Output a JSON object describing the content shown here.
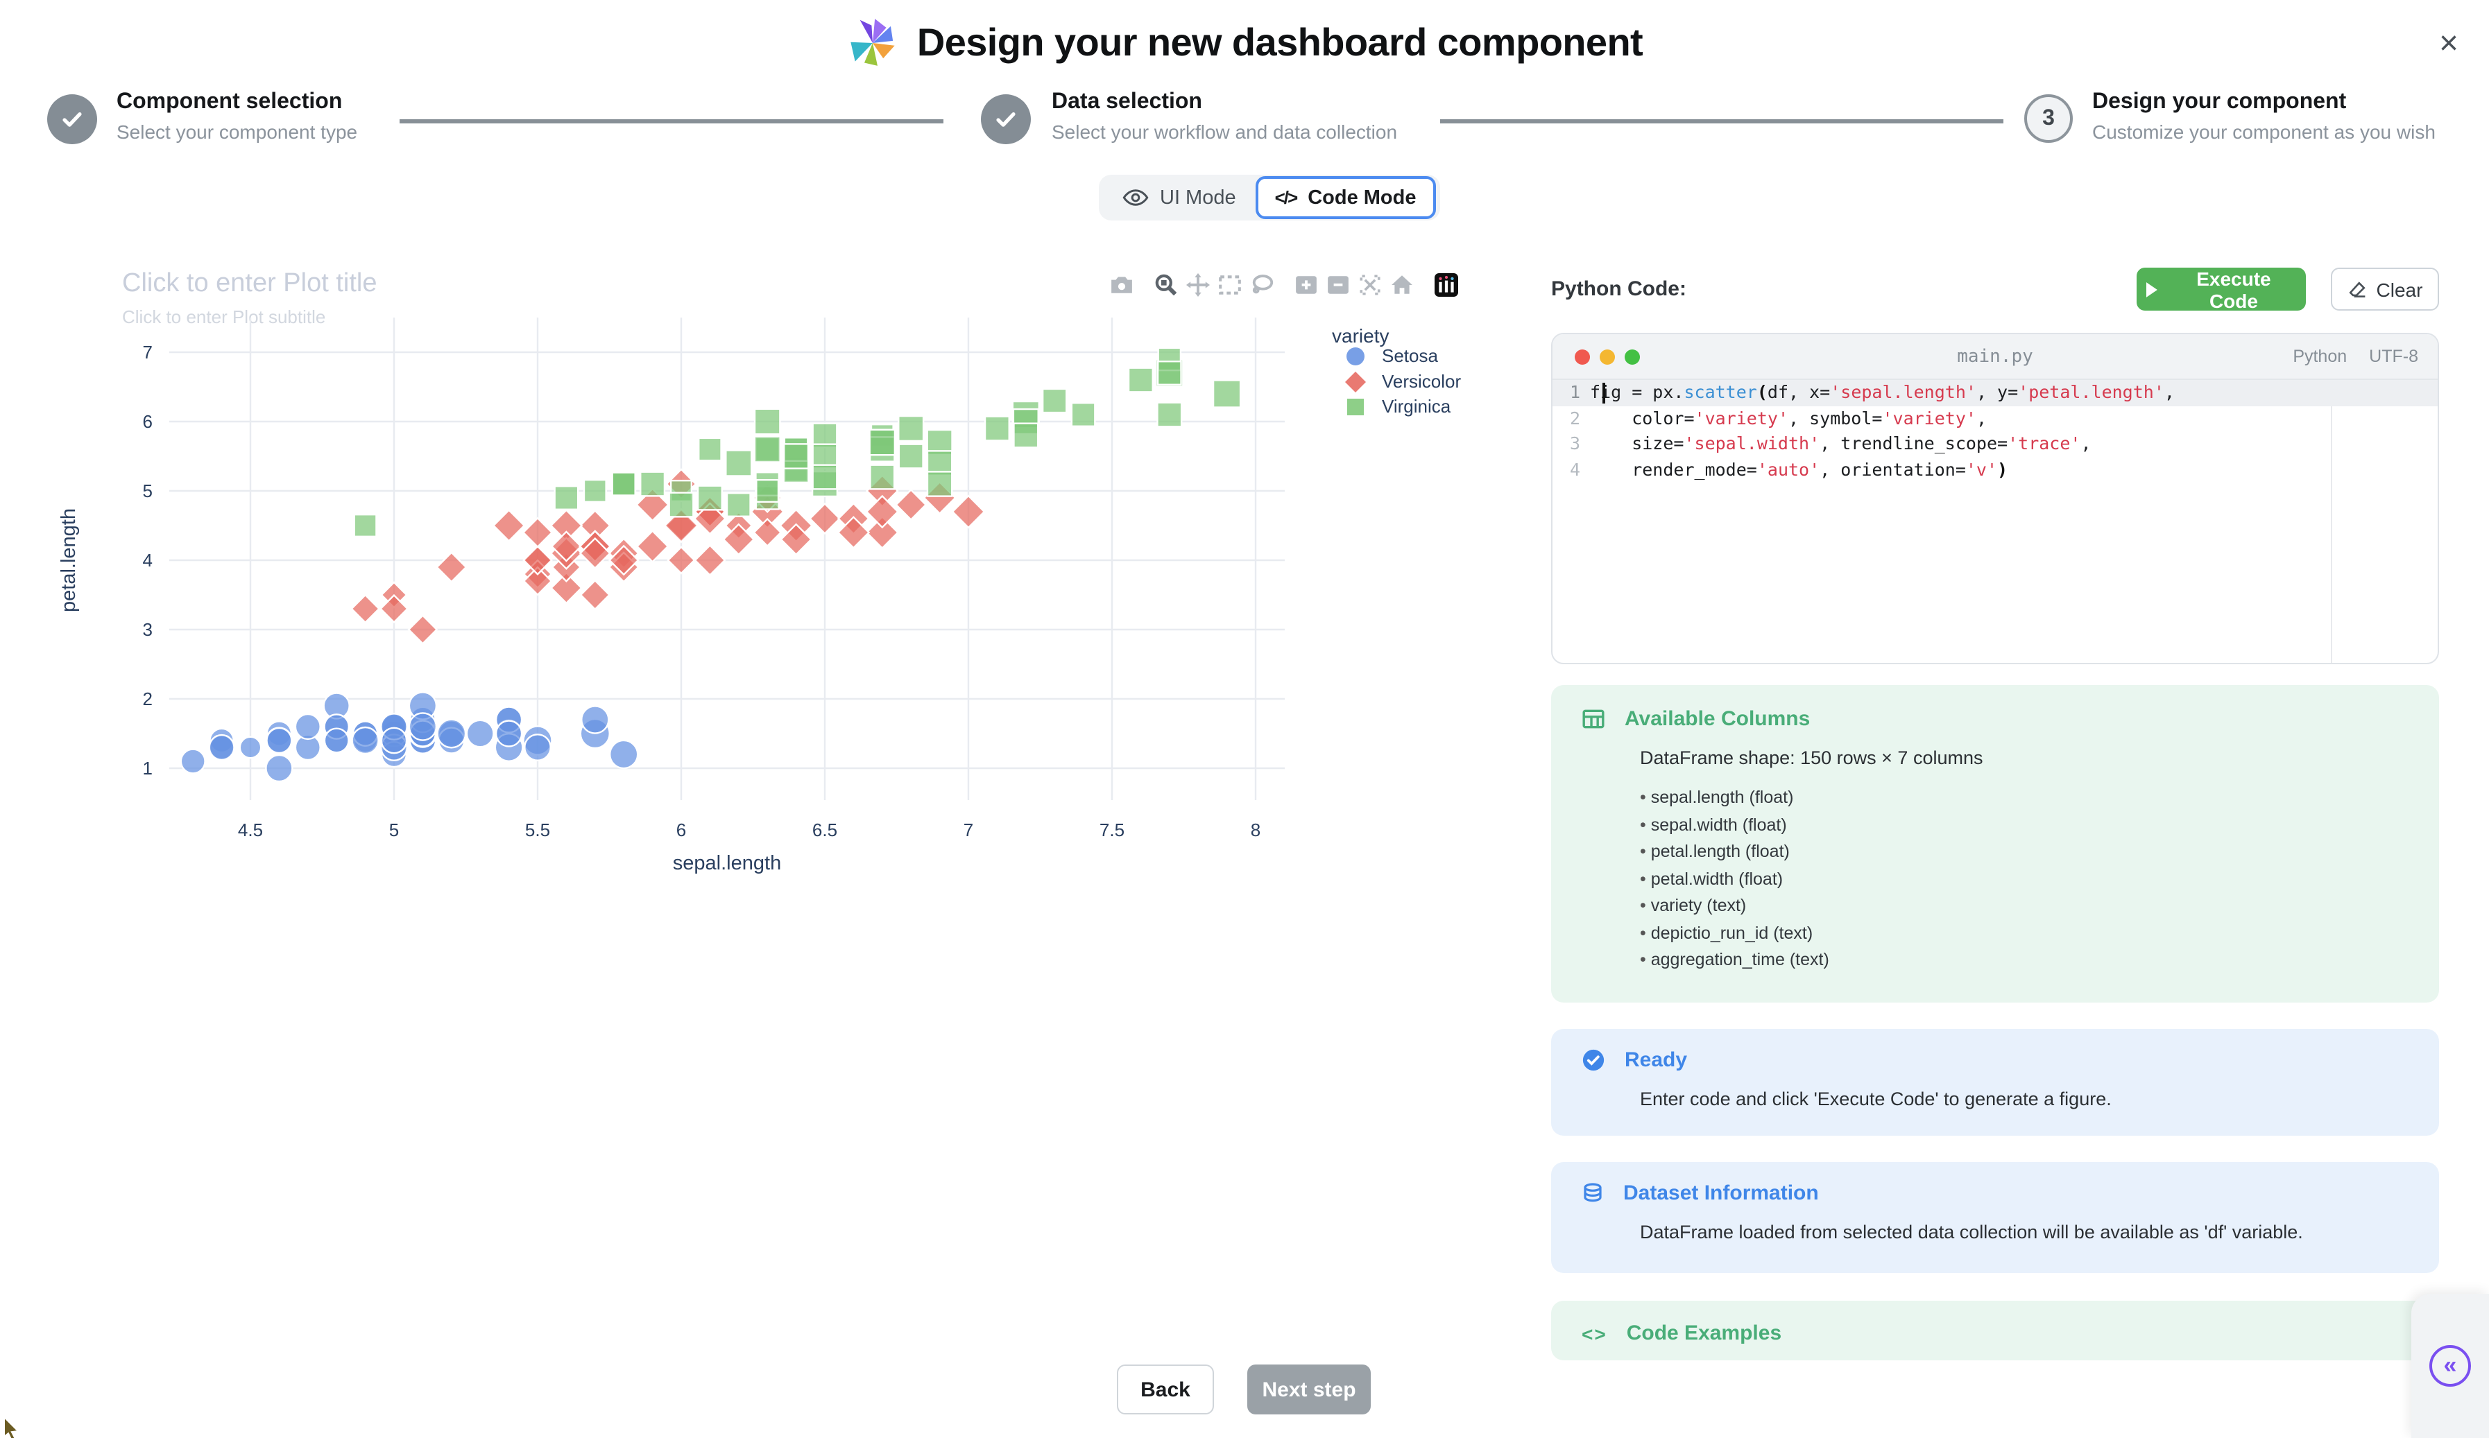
{
  "header": {
    "title": "Design your new dashboard component",
    "close_label": "×"
  },
  "stepper": {
    "steps": [
      {
        "title": "Component selection",
        "subtitle": "Select your component type",
        "state": "done"
      },
      {
        "title": "Data selection",
        "subtitle": "Select your workflow and data collection",
        "state": "done"
      },
      {
        "title": "Design your component",
        "subtitle": "Customize your component as you wish",
        "number": "3",
        "state": "current"
      }
    ]
  },
  "mode_toggle": {
    "ui_label": "UI Mode",
    "code_label": "Code Mode"
  },
  "plot": {
    "title_placeholder": "Click to enter Plot title",
    "subtitle_placeholder": "Click to enter Plot subtitle"
  },
  "chart_data": {
    "type": "scatter",
    "xlabel": "sepal.length",
    "ylabel": "petal.length",
    "size_field": "sepal.width",
    "x_ticks": [
      4.5,
      5,
      5.5,
      6,
      6.5,
      7,
      7.5,
      8
    ],
    "y_ticks": [
      1,
      2,
      3,
      4,
      5,
      6,
      7
    ],
    "xlim": [
      4.2,
      8.1
    ],
    "ylim": [
      0.6,
      7.4
    ],
    "grid": true,
    "legend_title": "variety",
    "legend_position": "top-right",
    "series": [
      {
        "name": "Setosa",
        "symbol": "circle",
        "color": "#6592e2",
        "points": [
          [
            5.1,
            1.4,
            3.5
          ],
          [
            4.9,
            1.4,
            3.0
          ],
          [
            4.7,
            1.3,
            3.2
          ],
          [
            4.6,
            1.5,
            3.1
          ],
          [
            5.0,
            1.4,
            3.6
          ],
          [
            5.4,
            1.7,
            3.9
          ],
          [
            4.6,
            1.4,
            3.4
          ],
          [
            5.0,
            1.5,
            3.4
          ],
          [
            4.4,
            1.4,
            2.9
          ],
          [
            4.9,
            1.5,
            3.1
          ],
          [
            5.4,
            1.5,
            3.7
          ],
          [
            4.8,
            1.6,
            3.4
          ],
          [
            4.8,
            1.4,
            3.0
          ],
          [
            4.3,
            1.1,
            3.0
          ],
          [
            5.8,
            1.2,
            4.0
          ],
          [
            5.7,
            1.5,
            4.4
          ],
          [
            5.4,
            1.3,
            3.9
          ],
          [
            5.1,
            1.4,
            3.5
          ],
          [
            5.7,
            1.7,
            3.8
          ],
          [
            5.1,
            1.5,
            3.8
          ],
          [
            5.4,
            1.7,
            3.4
          ],
          [
            5.1,
            1.5,
            3.7
          ],
          [
            4.6,
            1.0,
            3.6
          ],
          [
            5.1,
            1.7,
            3.3
          ],
          [
            4.8,
            1.9,
            3.4
          ],
          [
            5.0,
            1.6,
            3.0
          ],
          [
            5.0,
            1.6,
            3.4
          ],
          [
            5.2,
            1.5,
            3.5
          ],
          [
            5.2,
            1.4,
            3.4
          ],
          [
            4.7,
            1.6,
            3.2
          ],
          [
            4.8,
            1.6,
            3.1
          ],
          [
            5.4,
            1.5,
            3.4
          ],
          [
            5.2,
            1.5,
            4.1
          ],
          [
            5.5,
            1.4,
            4.2
          ],
          [
            4.9,
            1.5,
            3.1
          ],
          [
            5.0,
            1.2,
            3.2
          ],
          [
            5.5,
            1.3,
            3.5
          ],
          [
            4.9,
            1.4,
            3.6
          ],
          [
            4.4,
            1.3,
            3.0
          ],
          [
            5.1,
            1.5,
            3.4
          ],
          [
            5.0,
            1.3,
            3.5
          ],
          [
            4.5,
            1.3,
            2.3
          ],
          [
            4.4,
            1.3,
            3.2
          ],
          [
            5.0,
            1.6,
            3.5
          ],
          [
            5.1,
            1.9,
            3.8
          ],
          [
            4.8,
            1.4,
            3.0
          ],
          [
            5.1,
            1.6,
            3.8
          ],
          [
            4.6,
            1.4,
            3.2
          ],
          [
            5.3,
            1.5,
            3.7
          ],
          [
            5.0,
            1.4,
            3.3
          ]
        ]
      },
      {
        "name": "Versicolor",
        "symbol": "diamond",
        "color": "#e6685e",
        "points": [
          [
            7.0,
            4.7,
            3.2
          ],
          [
            6.4,
            4.5,
            3.2
          ],
          [
            6.9,
            4.9,
            3.1
          ],
          [
            5.5,
            4.0,
            2.3
          ],
          [
            6.5,
            4.6,
            2.8
          ],
          [
            5.7,
            4.5,
            2.8
          ],
          [
            6.3,
            4.7,
            3.3
          ],
          [
            4.9,
            3.3,
            2.4
          ],
          [
            6.6,
            4.6,
            2.9
          ],
          [
            5.2,
            3.9,
            2.7
          ],
          [
            5.0,
            3.5,
            2.0
          ],
          [
            5.9,
            4.2,
            3.0
          ],
          [
            6.0,
            4.0,
            2.2
          ],
          [
            6.1,
            4.7,
            2.9
          ],
          [
            5.6,
            3.6,
            2.9
          ],
          [
            6.7,
            4.4,
            3.1
          ],
          [
            5.6,
            4.5,
            3.0
          ],
          [
            5.8,
            4.1,
            2.7
          ],
          [
            6.2,
            4.5,
            2.2
          ],
          [
            5.6,
            3.9,
            2.5
          ],
          [
            5.9,
            4.8,
            3.2
          ],
          [
            6.1,
            4.0,
            2.8
          ],
          [
            6.3,
            4.9,
            2.5
          ],
          [
            6.1,
            4.7,
            2.8
          ],
          [
            6.4,
            4.3,
            2.9
          ],
          [
            6.6,
            4.4,
            3.0
          ],
          [
            6.8,
            4.8,
            2.8
          ],
          [
            6.7,
            5.0,
            3.0
          ],
          [
            6.0,
            4.5,
            2.9
          ],
          [
            5.7,
            3.5,
            2.6
          ],
          [
            5.5,
            3.8,
            2.4
          ],
          [
            5.5,
            3.7,
            2.4
          ],
          [
            5.8,
            3.9,
            2.7
          ],
          [
            6.0,
            5.1,
            2.7
          ],
          [
            5.4,
            4.5,
            3.0
          ],
          [
            6.0,
            4.5,
            3.4
          ],
          [
            6.7,
            4.7,
            3.1
          ],
          [
            6.3,
            4.4,
            2.3
          ],
          [
            5.6,
            4.1,
            3.0
          ],
          [
            5.5,
            4.0,
            2.5
          ],
          [
            5.5,
            4.4,
            2.6
          ],
          [
            6.1,
            4.6,
            3.0
          ],
          [
            5.8,
            4.0,
            2.6
          ],
          [
            5.0,
            3.3,
            2.3
          ],
          [
            5.6,
            4.2,
            2.7
          ],
          [
            5.7,
            4.2,
            3.0
          ],
          [
            5.7,
            4.2,
            2.9
          ],
          [
            6.2,
            4.3,
            2.9
          ],
          [
            5.1,
            3.0,
            2.5
          ],
          [
            5.7,
            4.1,
            2.8
          ]
        ]
      },
      {
        "name": "Virginica",
        "symbol": "square",
        "color": "#7ec878",
        "points": [
          [
            6.3,
            6.0,
            3.3
          ],
          [
            5.8,
            5.1,
            2.7
          ],
          [
            7.1,
            5.9,
            3.0
          ],
          [
            6.3,
            5.6,
            2.9
          ],
          [
            6.5,
            5.8,
            3.0
          ],
          [
            7.6,
            6.6,
            3.0
          ],
          [
            4.9,
            4.5,
            2.5
          ],
          [
            7.3,
            6.3,
            2.9
          ],
          [
            6.7,
            5.8,
            2.5
          ],
          [
            7.2,
            6.1,
            3.6
          ],
          [
            6.5,
            5.1,
            3.2
          ],
          [
            6.4,
            5.3,
            2.7
          ],
          [
            6.8,
            5.5,
            3.0
          ],
          [
            5.7,
            5.0,
            2.5
          ],
          [
            5.8,
            5.1,
            2.8
          ],
          [
            6.4,
            5.3,
            3.2
          ],
          [
            6.5,
            5.5,
            3.0
          ],
          [
            7.7,
            6.7,
            3.8
          ],
          [
            7.7,
            6.9,
            2.6
          ],
          [
            6.0,
            5.0,
            2.2
          ],
          [
            6.9,
            5.7,
            3.2
          ],
          [
            5.6,
            4.9,
            2.8
          ],
          [
            7.7,
            6.7,
            2.8
          ],
          [
            6.3,
            4.9,
            2.7
          ],
          [
            6.7,
            5.7,
            3.3
          ],
          [
            7.2,
            6.0,
            3.2
          ],
          [
            6.2,
            4.8,
            2.8
          ],
          [
            6.1,
            4.9,
            3.0
          ],
          [
            6.4,
            5.6,
            2.8
          ],
          [
            7.2,
            5.8,
            3.0
          ],
          [
            7.4,
            6.1,
            2.8
          ],
          [
            7.9,
            6.4,
            3.8
          ],
          [
            6.4,
            5.6,
            2.8
          ],
          [
            6.3,
            5.1,
            2.8
          ],
          [
            6.1,
            5.6,
            2.6
          ],
          [
            7.7,
            6.1,
            3.0
          ],
          [
            6.3,
            5.6,
            3.4
          ],
          [
            6.4,
            5.5,
            3.1
          ],
          [
            6.0,
            4.8,
            3.0
          ],
          [
            6.9,
            5.4,
            3.1
          ],
          [
            6.7,
            5.6,
            3.1
          ],
          [
            6.9,
            5.1,
            3.1
          ],
          [
            5.8,
            5.1,
            2.7
          ],
          [
            6.8,
            5.9,
            3.2
          ],
          [
            6.7,
            5.7,
            3.3
          ],
          [
            6.7,
            5.2,
            3.0
          ],
          [
            6.3,
            5.0,
            2.5
          ],
          [
            6.5,
            5.2,
            3.0
          ],
          [
            6.2,
            5.4,
            3.4
          ],
          [
            5.9,
            5.1,
            3.0
          ]
        ]
      }
    ]
  },
  "code_panel": {
    "label": "Python Code:",
    "execute_label": "Execute Code",
    "clear_label": "Clear",
    "filename": "main.py",
    "language": "Python",
    "encoding": "UTF-8",
    "lines": [
      {
        "no": "1",
        "segs": [
          {
            "c": "p",
            "t": "fig = px."
          },
          {
            "c": "f",
            "t": "scatter"
          },
          {
            "c": "b",
            "t": "("
          },
          {
            "c": "p",
            "t": "df, x="
          },
          {
            "c": "s",
            "t": "'sepal.length'"
          },
          {
            "c": "p",
            "t": ", y="
          },
          {
            "c": "s",
            "t": "'petal.length'"
          },
          {
            "c": "p",
            "t": ","
          }
        ]
      },
      {
        "no": "2",
        "segs": [
          {
            "c": "p",
            "t": "    color="
          },
          {
            "c": "s",
            "t": "'variety'"
          },
          {
            "c": "p",
            "t": ", symbol="
          },
          {
            "c": "s",
            "t": "'variety'"
          },
          {
            "c": "p",
            "t": ","
          }
        ]
      },
      {
        "no": "3",
        "segs": [
          {
            "c": "p",
            "t": "    size="
          },
          {
            "c": "s",
            "t": "'sepal.width'"
          },
          {
            "c": "p",
            "t": ", trendline_scope="
          },
          {
            "c": "s",
            "t": "'trace'"
          },
          {
            "c": "p",
            "t": ","
          }
        ]
      },
      {
        "no": "4",
        "segs": [
          {
            "c": "p",
            "t": "    render_mode="
          },
          {
            "c": "s",
            "t": "'auto'"
          },
          {
            "c": "p",
            "t": ", orientation="
          },
          {
            "c": "s",
            "t": "'v'"
          },
          {
            "c": "b",
            "t": ")"
          }
        ]
      }
    ]
  },
  "panels": {
    "columns": {
      "title": "Available Columns",
      "shape": "DataFrame shape: 150 rows × 7 columns",
      "items": [
        "sepal.length (float)",
        "sepal.width (float)",
        "petal.length (float)",
        "petal.width (float)",
        "variety (text)",
        "depictio_run_id (text)",
        "aggregation_time (text)"
      ]
    },
    "ready": {
      "title": "Ready",
      "body": "Enter code and click 'Execute Code' to generate a figure."
    },
    "dataset": {
      "title": "Dataset Information",
      "body": "DataFrame loaded from selected data collection will be available as 'df' variable."
    },
    "examples": {
      "title": "Code Examples"
    }
  },
  "footer": {
    "back_label": "Back",
    "next_label": "Next step"
  },
  "colors": {
    "accent_blue": "#4c8bf0",
    "execute_green": "#53b257",
    "step_gray": "#848d95",
    "mint_panel": "#e9f6ef",
    "blue_panel": "#e8f1fc",
    "purple": "#7a4ff0",
    "traffic_red": "#f0594f",
    "traffic_yellow": "#f4b731",
    "traffic_green": "#43c043"
  }
}
